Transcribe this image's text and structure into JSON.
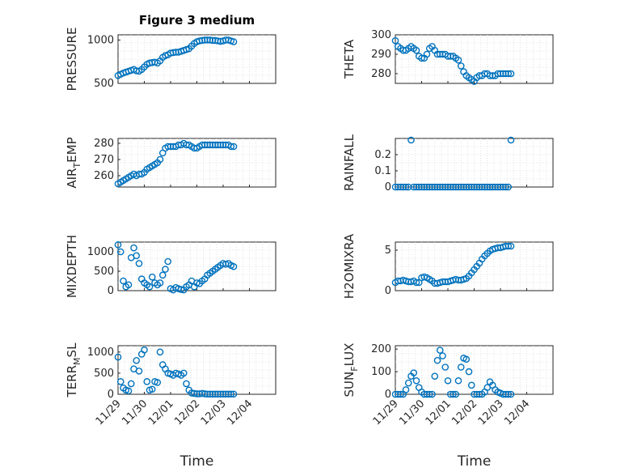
{
  "figure": {
    "title": "Figure 3 medium",
    "marker_color": "#0072BD",
    "x_tick_labels": [
      "11/29",
      "11/30",
      "12/01",
      "12/02",
      "12/03",
      "12/04"
    ],
    "x_label": "Time"
  },
  "chart_data": [
    {
      "type": "scatter",
      "ylabel": "PRESSURE",
      "xlim": [
        0,
        6
      ],
      "ylim": [
        500,
        1060
      ],
      "yticks": [
        500,
        1000
      ],
      "grid": true,
      "x": [
        0.0,
        0.1,
        0.2,
        0.3,
        0.4,
        0.5,
        0.6,
        0.7,
        0.8,
        0.9,
        1.0,
        1.1,
        1.2,
        1.3,
        1.4,
        1.5,
        1.6,
        1.7,
        1.8,
        1.9,
        2.0,
        2.1,
        2.2,
        2.3,
        2.4,
        2.5,
        2.6,
        2.7,
        2.8,
        2.9,
        3.0,
        3.1,
        3.2,
        3.3,
        3.4,
        3.5,
        3.6,
        3.7,
        3.8,
        3.9,
        4.0,
        4.1,
        4.2,
        4.3,
        4.4
      ],
      "y": [
        590,
        605,
        620,
        630,
        640,
        650,
        660,
        645,
        640,
        660,
        690,
        720,
        735,
        740,
        745,
        735,
        760,
        800,
        820,
        830,
        850,
        855,
        860,
        860,
        870,
        880,
        890,
        900,
        930,
        960,
        980,
        990,
        995,
        1000,
        1000,
        1000,
        995,
        995,
        990,
        985,
        990,
        1000,
        1000,
        990,
        980
      ]
    },
    {
      "type": "scatter",
      "ylabel": "THETA",
      "xlim": [
        0,
        6
      ],
      "ylim": [
        275,
        300
      ],
      "yticks": [
        280,
        290,
        300
      ],
      "grid": true,
      "x": [
        0.0,
        0.1,
        0.2,
        0.3,
        0.4,
        0.5,
        0.6,
        0.7,
        0.8,
        0.9,
        1.0,
        1.1,
        1.2,
        1.3,
        1.4,
        1.5,
        1.6,
        1.7,
        1.8,
        1.9,
        2.0,
        2.1,
        2.2,
        2.3,
        2.4,
        2.5,
        2.6,
        2.7,
        2.8,
        2.9,
        3.0,
        3.1,
        3.2,
        3.3,
        3.4,
        3.5,
        3.6,
        3.7,
        3.8,
        3.9,
        4.0,
        4.1,
        4.2,
        4.3,
        4.4
      ],
      "y": [
        297,
        294,
        293,
        292,
        292,
        293,
        294,
        293,
        292,
        289,
        288,
        288,
        290,
        293,
        294,
        292,
        290,
        290,
        290,
        290,
        289,
        289,
        289,
        288,
        287,
        284,
        281,
        279,
        278,
        277,
        276,
        278,
        279,
        279,
        280,
        280,
        279,
        279,
        279,
        280,
        280,
        280,
        280,
        280,
        280
      ]
    },
    {
      "type": "scatter",
      "ylabel": "AIR_TEMP",
      "xlim": [
        0,
        6
      ],
      "ylim": [
        253,
        283
      ],
      "yticks": [
        260,
        270,
        280
      ],
      "grid": true,
      "x": [
        0.0,
        0.1,
        0.2,
        0.3,
        0.4,
        0.5,
        0.6,
        0.7,
        0.8,
        0.9,
        1.0,
        1.1,
        1.2,
        1.3,
        1.4,
        1.5,
        1.6,
        1.7,
        1.8,
        1.9,
        2.0,
        2.1,
        2.2,
        2.3,
        2.4,
        2.5,
        2.6,
        2.7,
        2.8,
        2.9,
        3.0,
        3.1,
        3.2,
        3.3,
        3.4,
        3.5,
        3.6,
        3.7,
        3.8,
        3.9,
        4.0,
        4.1,
        4.2,
        4.3,
        4.4
      ],
      "y": [
        255,
        256,
        257,
        258,
        259,
        260,
        261,
        260,
        261,
        261,
        262,
        264,
        265,
        266,
        267,
        268,
        270,
        274,
        277,
        278,
        278,
        278,
        278,
        279,
        279,
        280,
        279,
        279,
        278,
        277,
        277,
        278,
        279,
        279,
        279,
        279,
        279,
        279,
        279,
        279,
        279,
        279,
        279,
        278,
        278
      ]
    },
    {
      "type": "scatter",
      "ylabel": "RAINFALL",
      "xlim": [
        0,
        6
      ],
      "ylim": [
        0,
        0.3
      ],
      "yticks": [
        0,
        0.1,
        0.2
      ],
      "grid": true,
      "x": [
        0.0,
        0.1,
        0.2,
        0.3,
        0.4,
        0.5,
        0.6,
        0.7,
        0.8,
        0.9,
        1.0,
        1.1,
        1.2,
        1.3,
        1.4,
        1.5,
        1.6,
        1.7,
        1.8,
        1.9,
        2.0,
        2.1,
        2.2,
        2.3,
        2.4,
        2.5,
        2.6,
        2.7,
        2.8,
        2.9,
        3.0,
        3.1,
        3.2,
        3.3,
        3.4,
        3.5,
        3.6,
        3.7,
        3.8,
        3.9,
        4.0,
        4.1,
        4.2,
        4.3,
        4.4
      ],
      "y": [
        0,
        0,
        0,
        0,
        0,
        0,
        0.29,
        0,
        0,
        0,
        0,
        0,
        0,
        0,
        0,
        0,
        0,
        0,
        0,
        0,
        0,
        0,
        0,
        0,
        0,
        0,
        0,
        0,
        0,
        0,
        0,
        0,
        0,
        0,
        0,
        0,
        0,
        0,
        0,
        0,
        0,
        0,
        0,
        0,
        0.29
      ]
    },
    {
      "type": "scatter",
      "ylabel": "MIXDEPTH",
      "xlim": [
        0,
        6
      ],
      "ylim": [
        0,
        1250
      ],
      "yticks": [
        0,
        500,
        1000
      ],
      "grid": true,
      "x": [
        0.0,
        0.1,
        0.2,
        0.3,
        0.4,
        0.5,
        0.6,
        0.7,
        0.8,
        0.9,
        1.0,
        1.1,
        1.2,
        1.3,
        1.4,
        1.5,
        1.6,
        1.7,
        1.8,
        1.9,
        2.0,
        2.1,
        2.2,
        2.3,
        2.4,
        2.5,
        2.6,
        2.7,
        2.8,
        2.9,
        3.0,
        3.1,
        3.2,
        3.3,
        3.4,
        3.5,
        3.6,
        3.7,
        3.8,
        3.9,
        4.0,
        4.1,
        4.2,
        4.3,
        4.4
      ],
      "y": [
        1180,
        1000,
        250,
        100,
        150,
        850,
        1100,
        900,
        700,
        300,
        200,
        150,
        100,
        350,
        200,
        150,
        200,
        400,
        550,
        750,
        50,
        20,
        80,
        50,
        30,
        20,
        100,
        150,
        250,
        100,
        200,
        180,
        250,
        300,
        400,
        450,
        500,
        550,
        600,
        650,
        700,
        680,
        700,
        650,
        620
      ]
    },
    {
      "type": "scatter",
      "ylabel": "H2OMIXRA",
      "xlim": [
        0,
        6
      ],
      "ylim": [
        0,
        6
      ],
      "yticks": [
        0,
        5
      ],
      "grid": true,
      "x": [
        0.0,
        0.1,
        0.2,
        0.3,
        0.4,
        0.5,
        0.6,
        0.7,
        0.8,
        0.9,
        1.0,
        1.1,
        1.2,
        1.3,
        1.4,
        1.5,
        1.6,
        1.7,
        1.8,
        1.9,
        2.0,
        2.1,
        2.2,
        2.3,
        2.4,
        2.5,
        2.6,
        2.7,
        2.8,
        2.9,
        3.0,
        3.1,
        3.2,
        3.3,
        3.4,
        3.5,
        3.6,
        3.7,
        3.8,
        3.9,
        4.0,
        4.1,
        4.2,
        4.3,
        4.4
      ],
      "y": [
        1.0,
        1.2,
        1.2,
        1.3,
        1.2,
        1.1,
        1.1,
        1.2,
        1.0,
        1.0,
        1.6,
        1.7,
        1.6,
        1.4,
        1.2,
        0.9,
        0.9,
        1.0,
        1.1,
        1.1,
        1.1,
        1.2,
        1.3,
        1.4,
        1.3,
        1.3,
        1.4,
        1.5,
        1.8,
        2.2,
        2.6,
        3.0,
        3.4,
        3.9,
        4.3,
        4.6,
        4.9,
        5.1,
        5.2,
        5.3,
        5.3,
        5.4,
        5.5,
        5.5,
        5.5
      ]
    },
    {
      "type": "scatter",
      "ylabel": "TERR_MSL",
      "xlim": [
        0,
        6
      ],
      "ylim": [
        0,
        1150
      ],
      "yticks": [
        0,
        500,
        1000
      ],
      "grid": true,
      "x": [
        0.0,
        0.1,
        0.2,
        0.3,
        0.4,
        0.5,
        0.6,
        0.7,
        0.8,
        0.9,
        1.0,
        1.1,
        1.2,
        1.3,
        1.4,
        1.5,
        1.6,
        1.7,
        1.8,
        1.9,
        2.0,
        2.1,
        2.2,
        2.3,
        2.4,
        2.5,
        2.6,
        2.7,
        2.8,
        2.9,
        3.0,
        3.1,
        3.2,
        3.3,
        3.4,
        3.5,
        3.6,
        3.7,
        3.8,
        3.9,
        4.0,
        4.1,
        4.2,
        4.3,
        4.4
      ],
      "y": [
        880,
        300,
        150,
        100,
        80,
        250,
        600,
        800,
        550,
        950,
        1050,
        300,
        100,
        120,
        300,
        280,
        1000,
        700,
        600,
        500,
        480,
        450,
        500,
        480,
        450,
        500,
        250,
        100,
        30,
        20,
        10,
        10,
        20,
        10,
        5,
        5,
        5,
        5,
        5,
        5,
        5,
        5,
        5,
        5,
        5
      ]
    },
    {
      "type": "scatter",
      "ylabel": "SUN_FLUX",
      "xlim": [
        0,
        6
      ],
      "ylim": [
        0,
        215
      ],
      "yticks": [
        0,
        100,
        200
      ],
      "grid": true,
      "x": [
        0.0,
        0.1,
        0.2,
        0.3,
        0.4,
        0.5,
        0.6,
        0.7,
        0.8,
        0.9,
        1.0,
        1.1,
        1.2,
        1.3,
        1.4,
        1.5,
        1.6,
        1.7,
        1.8,
        1.9,
        2.0,
        2.1,
        2.2,
        2.3,
        2.4,
        2.5,
        2.6,
        2.7,
        2.8,
        2.9,
        3.0,
        3.1,
        3.2,
        3.3,
        3.4,
        3.5,
        3.6,
        3.7,
        3.8,
        3.9,
        4.0,
        4.1,
        4.2,
        4.3,
        4.4
      ],
      "y": [
        0,
        0,
        0,
        0,
        20,
        50,
        80,
        95,
        60,
        30,
        10,
        0,
        0,
        0,
        0,
        80,
        150,
        195,
        170,
        120,
        60,
        0,
        0,
        0,
        60,
        120,
        160,
        155,
        100,
        40,
        0,
        0,
        0,
        0,
        10,
        30,
        55,
        40,
        20,
        10,
        5,
        0,
        0,
        0,
        0
      ]
    }
  ]
}
